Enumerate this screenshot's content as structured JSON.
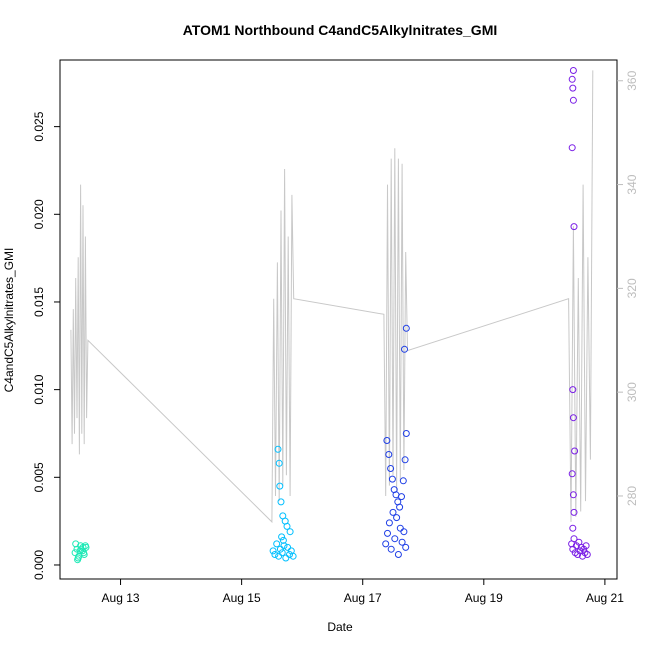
{
  "chart_data": {
    "type": "scatter",
    "title": "ATOM1 Northbound C4andC5Alkylnitrates_GMI",
    "xlabel": "Date",
    "ylabel": "C4andC5Alkylnitrates_GMI",
    "x_ticks": [
      "Aug 13",
      "Aug 15",
      "Aug 17",
      "Aug 19",
      "Aug 21"
    ],
    "x_tick_values": [
      13,
      15,
      17,
      19,
      21
    ],
    "xlim": [
      12.0,
      21.2
    ],
    "ylim": [
      -0.0008,
      0.0288
    ],
    "y_ticks": [
      "0.000",
      "0.005",
      "0.010",
      "0.015",
      "0.020",
      "0.025"
    ],
    "y_tick_values": [
      0.0,
      0.005,
      0.01,
      0.015,
      0.02,
      0.025
    ],
    "y2_ticks": [
      "280",
      "300",
      "320",
      "340",
      "360"
    ],
    "y2_tick_values": [
      280,
      300,
      320,
      340,
      360
    ],
    "y2lim": [
      264,
      364
    ],
    "grid": false,
    "series": [
      {
        "color": "#1de9b6",
        "x": [
          12.25,
          12.28,
          12.31,
          12.34,
          12.37,
          12.4,
          12.43,
          12.26,
          12.3,
          12.35,
          12.39,
          12.42,
          12.29,
          12.33,
          12.38
        ],
        "y": [
          0.0007,
          0.0009,
          0.0005,
          0.0011,
          0.0008,
          0.0006,
          0.001,
          0.0012,
          0.0004,
          0.0009,
          0.0007,
          0.0011,
          0.0003,
          0.0008,
          0.001
        ]
      },
      {
        "color": "#00bfff",
        "x": [
          15.52,
          15.55,
          15.58,
          15.61,
          15.64,
          15.67,
          15.7,
          15.73,
          15.76,
          15.79,
          15.82,
          15.85,
          15.6,
          15.62,
          15.63,
          15.65,
          15.68,
          15.72,
          15.75,
          15.8,
          15.66,
          15.69
        ],
        "y": [
          0.0008,
          0.0006,
          0.0012,
          0.0005,
          0.0009,
          0.0007,
          0.0011,
          0.0004,
          0.001,
          0.0006,
          0.0008,
          0.0005,
          0.0066,
          0.0058,
          0.0045,
          0.0036,
          0.0028,
          0.0025,
          0.0022,
          0.0019,
          0.0016,
          0.0014
        ]
      },
      {
        "color": "#1f3fe6",
        "x": [
          17.38,
          17.41,
          17.44,
          17.47,
          17.5,
          17.53,
          17.56,
          17.59,
          17.62,
          17.65,
          17.68,
          17.71,
          17.4,
          17.43,
          17.46,
          17.49,
          17.52,
          17.55,
          17.58,
          17.61,
          17.64,
          17.67,
          17.7,
          17.72,
          17.69,
          17.72
        ],
        "y": [
          0.0012,
          0.0018,
          0.0024,
          0.0009,
          0.003,
          0.0015,
          0.0027,
          0.0006,
          0.0021,
          0.0013,
          0.0019,
          0.001,
          0.0071,
          0.0063,
          0.0055,
          0.0049,
          0.0043,
          0.004,
          0.0036,
          0.0033,
          0.0039,
          0.0048,
          0.006,
          0.0075,
          0.0123,
          0.0135
        ]
      },
      {
        "color": "#7a1fe6",
        "x": [
          20.45,
          20.47,
          20.49,
          20.51,
          20.53,
          20.55,
          20.57,
          20.59,
          20.61,
          20.63,
          20.65,
          20.67,
          20.69,
          20.71,
          20.48,
          20.46,
          20.47,
          20.48,
          20.46,
          20.49,
          20.47,
          20.48,
          20.5,
          20.46,
          20.48,
          20.49,
          20.47
        ],
        "y": [
          0.0012,
          0.0009,
          0.0015,
          0.0007,
          0.0011,
          0.0006,
          0.0013,
          0.0008,
          0.001,
          0.0005,
          0.0009,
          0.0007,
          0.0011,
          0.0006,
          0.0282,
          0.0277,
          0.0272,
          0.0265,
          0.0238,
          0.0193,
          0.01,
          0.0084,
          0.0065,
          0.0052,
          0.004,
          0.003,
          0.0021
        ]
      }
    ],
    "secondary_line": {
      "color": "#c8c8c8",
      "axis": "right",
      "x": [
        12.18,
        12.2,
        12.22,
        12.24,
        12.26,
        12.28,
        12.3,
        12.32,
        12.34,
        12.36,
        12.38,
        12.4,
        12.42,
        12.44,
        12.46,
        15.5,
        15.53,
        15.56,
        15.59,
        15.62,
        15.65,
        15.68,
        15.71,
        15.74,
        15.77,
        15.8,
        15.83,
        15.86,
        17.35,
        17.38,
        17.41,
        17.44,
        17.47,
        17.5,
        17.53,
        17.56,
        17.59,
        17.62,
        17.65,
        17.68,
        17.71,
        17.74,
        20.4,
        20.44,
        20.48,
        20.52,
        20.56,
        20.6,
        20.64,
        20.68,
        20.72,
        20.76,
        20.8
      ],
      "y": [
        312,
        290,
        316,
        292,
        322,
        295,
        326,
        288,
        340,
        292,
        336,
        290,
        330,
        295,
        310,
        275,
        318,
        280,
        325,
        279,
        335,
        282,
        343,
        284,
        330,
        280,
        338,
        318,
        315,
        280,
        340,
        282,
        345,
        284,
        347,
        281,
        345,
        283,
        344,
        285,
        327,
        308,
        318,
        275,
        332,
        276,
        322,
        277,
        340,
        279,
        326,
        287,
        362
      ]
    }
  }
}
